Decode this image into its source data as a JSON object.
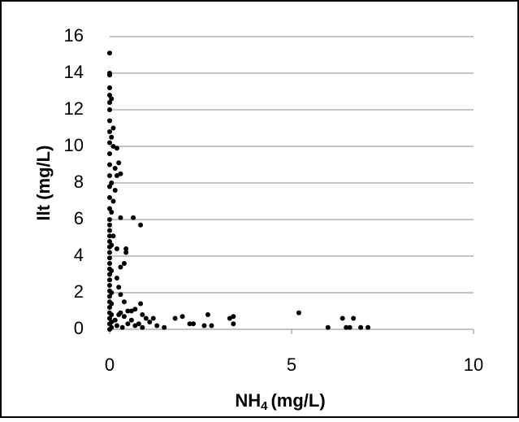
{
  "chart_data": {
    "type": "scatter",
    "xlabel_parts": {
      "main": "NH",
      "subscript": "4",
      "unit": "(mg/L)"
    },
    "ylabel": "Ilt (mg/L)",
    "xlim": [
      0,
      10
    ],
    "xticks": [
      0,
      5,
      10
    ],
    "ylim": [
      0,
      16
    ],
    "yticks": [
      0,
      2,
      4,
      6,
      8,
      10,
      12,
      14,
      16
    ],
    "grid": true,
    "color": "#000000",
    "series": [
      {
        "name": "Ilt",
        "color": "#000000",
        "x": [
          0,
          0,
          0,
          0,
          0,
          0,
          0,
          0,
          0,
          0,
          0,
          0,
          0,
          0,
          0,
          0,
          0,
          0,
          0,
          0,
          0,
          0,
          0,
          0,
          0,
          0,
          0,
          0,
          0,
          0,
          0,
          0,
          0,
          0,
          0,
          0,
          0,
          0.05,
          0.05,
          0.05,
          0.05,
          0.05,
          0.05,
          0.05,
          0.05,
          0.05,
          0.05,
          0.1,
          0.05,
          0.1,
          0.2,
          0.15,
          0.25,
          0.3,
          0.2,
          0.15,
          0.1,
          0.3,
          0.65,
          0.85,
          0.45,
          0.45,
          0.1,
          0.2,
          0.4,
          0.3,
          0.2,
          0.25,
          0.3,
          0.4,
          0.85,
          0.5,
          0.6,
          0.7,
          0.9,
          1.0,
          1.2,
          1.5,
          1.8,
          2.0,
          2.2,
          2.3,
          2.6,
          2.7,
          2.8,
          3.3,
          3.4,
          3.4,
          5.2,
          6.0,
          6.4,
          6.5,
          6.6,
          6.7,
          6.9,
          7.1,
          1.3,
          0.8,
          0.6,
          0.4,
          0.3,
          0.2,
          0.5,
          0.7,
          1.1,
          0.9,
          0.15,
          0.25,
          0.35
        ],
        "values": [
          0,
          0.3,
          0.6,
          0.9,
          1.2,
          1.5,
          1.8,
          2.1,
          2.4,
          2.7,
          3.0,
          3.3,
          3.6,
          3.9,
          4.2,
          4.5,
          4.8,
          5.1,
          5.4,
          5.7,
          6.0,
          6.6,
          7.2,
          7.8,
          8.4,
          9.0,
          9.6,
          10.2,
          10.8,
          11.4,
          12.0,
          12.4,
          12.8,
          13.2,
          13.9,
          14.0,
          15.1,
          0.1,
          0.4,
          0.8,
          1.4,
          2.0,
          3.2,
          4.6,
          6.4,
          8.0,
          12.6,
          11,
          10.5,
          10,
          9.9,
          8.8,
          9.1,
          8.5,
          8.4,
          7.6,
          7,
          6.1,
          6.1,
          5.7,
          4.4,
          4.2,
          5.1,
          4.4,
          3.6,
          3.4,
          2.8,
          2.3,
          1.9,
          1.5,
          1.4,
          1.0,
          1.0,
          1.1,
          0.8,
          0.6,
          0.6,
          0.1,
          0.6,
          0.7,
          0.3,
          0.3,
          0.2,
          0.8,
          0.2,
          0.6,
          0.7,
          0.3,
          0.9,
          0.1,
          0.6,
          0.1,
          0.1,
          0.6,
          0.1,
          0.1,
          0.2,
          0.3,
          0.5,
          0.7,
          0.9,
          0.2,
          0.3,
          0.2,
          0.4,
          0.1,
          0.5,
          0.8,
          0.1
        ]
      }
    ]
  }
}
